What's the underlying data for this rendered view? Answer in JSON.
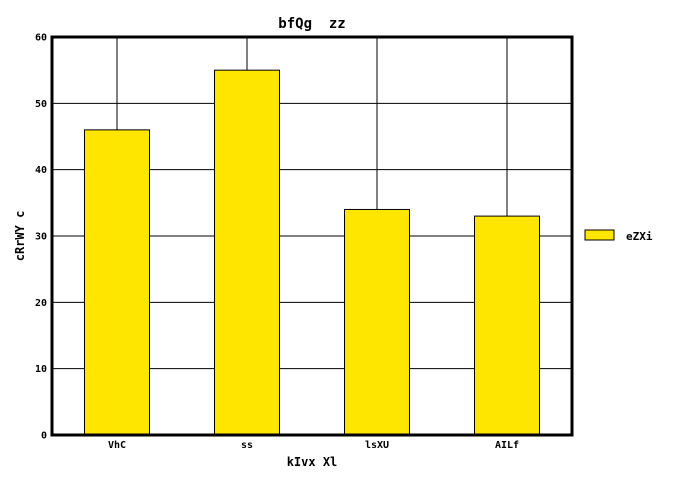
{
  "chart_data": {
    "type": "bar",
    "title": "bfQg  zz",
    "xlabel": "kIvx Xl",
    "ylabel": "cRrWY c",
    "categories": [
      "VhC",
      "ss",
      "lsXU",
      "AILf"
    ],
    "series": [
      {
        "name": "eZXi",
        "values": [
          46,
          55,
          34,
          33
        ],
        "color": "#FFE600"
      }
    ],
    "ylim": [
      0,
      60
    ],
    "yticks": [
      0,
      10,
      20,
      30,
      40,
      50,
      60
    ],
    "grid": true,
    "legend_position": "right"
  }
}
